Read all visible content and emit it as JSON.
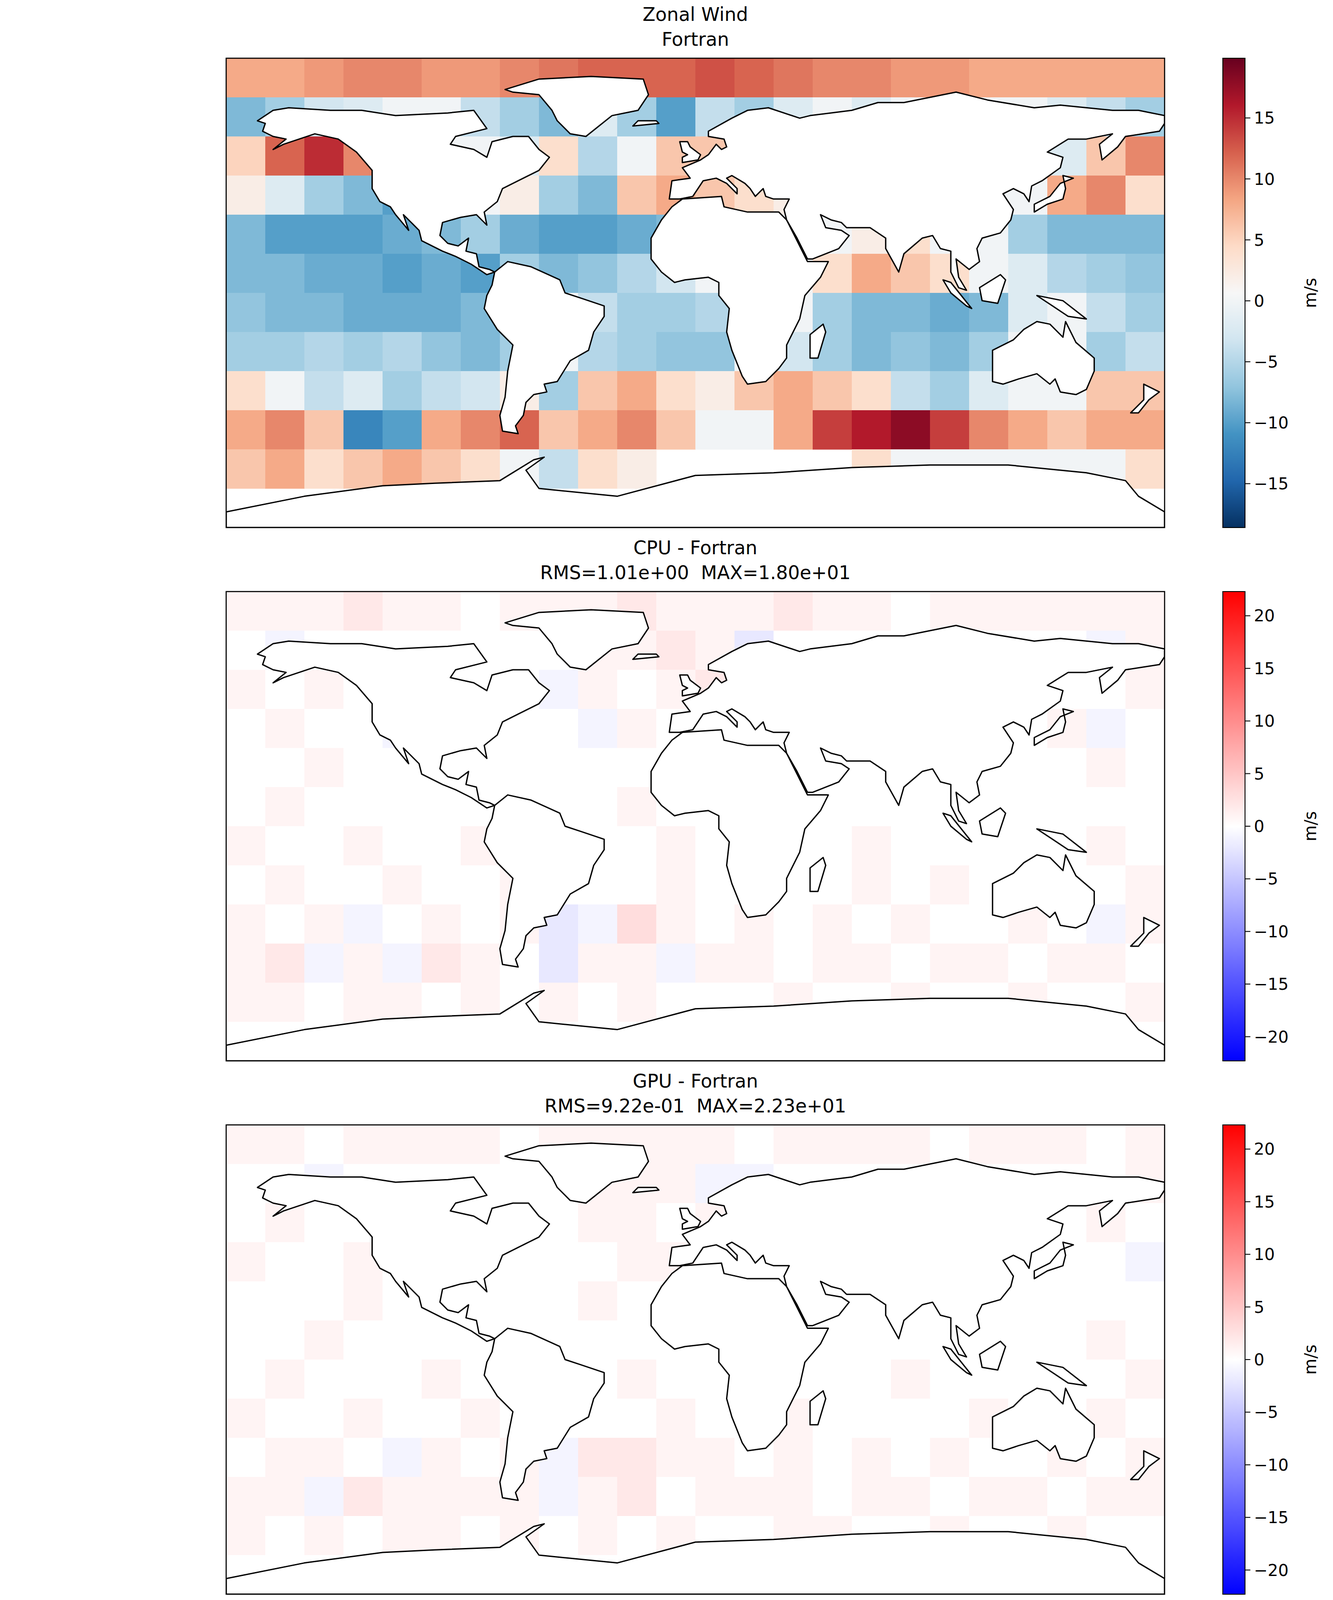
{
  "chart_data": [
    {
      "type": "heatmap",
      "title": "Zonal Wind",
      "subtitle": "Fortran",
      "tick_labels": false,
      "xlim": [
        -180,
        180
      ],
      "ylim": [
        -90,
        90
      ],
      "x": [
        -172.5,
        -157.5,
        -142.5,
        -127.5,
        -112.5,
        -97.5,
        -82.5,
        -67.5,
        -52.5,
        -37.5,
        -22.5,
        -7.5,
        7.5,
        22.5,
        37.5,
        52.5,
        67.5,
        82.5,
        97.5,
        112.5,
        127.5,
        142.5,
        157.5,
        172.5
      ],
      "y": [
        82.5,
        67.5,
        52.5,
        37.5,
        22.5,
        7.5,
        -7.5,
        -22.5,
        -37.5,
        -52.5,
        -67.5,
        -82.5
      ],
      "cells": [
        [
          8,
          8,
          9,
          10,
          10,
          9,
          9,
          10,
          11,
          12,
          12,
          12,
          13,
          12,
          11,
          10,
          10,
          9,
          9,
          8,
          8,
          8,
          8,
          8
        ],
        [
          -8,
          -6,
          -3,
          -2,
          0,
          0,
          -4,
          -6,
          -8,
          -2,
          -6,
          -10,
          -4,
          -6,
          -2,
          0,
          -2,
          0,
          0,
          0,
          0,
          -2,
          -4,
          -6
        ],
        [
          5,
          12,
          15,
          10,
          0,
          0,
          0,
          -2,
          4,
          -5,
          0,
          6,
          6,
          2,
          0,
          0,
          0,
          0,
          0,
          0,
          0,
          -2,
          6,
          10
        ],
        [
          2,
          -2,
          -6,
          -8,
          -10,
          0,
          0,
          2,
          -6,
          -8,
          6,
          8,
          6,
          4,
          2,
          0,
          0,
          0,
          0,
          0,
          0,
          8,
          10,
          4
        ],
        [
          -8,
          -10,
          -10,
          -10,
          -9,
          -8,
          -6,
          -9,
          -10,
          -10,
          -9,
          -8,
          0,
          0,
          0,
          0,
          2,
          4,
          0,
          0,
          -6,
          -8,
          -8,
          -8
        ],
        [
          -8,
          -8,
          -9,
          -9,
          -10,
          -9,
          -10,
          -6,
          -8,
          -7,
          -5,
          -3,
          0,
          0,
          0,
          4,
          8,
          6,
          4,
          0,
          -2,
          -5,
          -6,
          -7
        ],
        [
          -7,
          -8,
          -8,
          -9,
          -9,
          -9,
          -8,
          -5,
          0,
          -4,
          -6,
          -6,
          -5,
          0,
          0,
          -6,
          -8,
          -8,
          -9,
          -8,
          -2,
          0,
          -4,
          -6
        ],
        [
          -6,
          -6,
          -5,
          -6,
          -5,
          -7,
          -8,
          -6,
          0,
          -5,
          -6,
          -7,
          -7,
          0,
          -3,
          -6,
          -8,
          -7,
          -8,
          -6,
          0,
          0,
          -6,
          -4
        ],
        [
          4,
          0,
          -4,
          -2,
          -6,
          -4,
          -3,
          2,
          -6,
          6,
          8,
          4,
          2,
          6,
          8,
          6,
          4,
          -4,
          -6,
          -2,
          0,
          0,
          6,
          6
        ],
        [
          8,
          10,
          6,
          -12,
          -10,
          8,
          10,
          12,
          6,
          8,
          10,
          6,
          0,
          0,
          8,
          14,
          16,
          18,
          14,
          10,
          8,
          6,
          8,
          8
        ],
        [
          6,
          8,
          4,
          6,
          8,
          6,
          4,
          0,
          -4,
          4,
          2,
          null,
          null,
          null,
          null,
          null,
          4,
          0,
          0,
          0,
          0,
          0,
          0,
          4
        ],
        [
          null,
          null,
          null,
          null,
          null,
          null,
          null,
          null,
          null,
          null,
          null,
          null,
          null,
          null,
          null,
          null,
          null,
          null,
          null,
          null,
          null,
          null,
          null,
          null
        ]
      ],
      "colorbar": {
        "label": "m/s",
        "range": [
          -18.6,
          19.9
        ],
        "ticks": [
          {
            "value": -15,
            "label": "−15"
          },
          {
            "value": -10,
            "label": "−10"
          },
          {
            "value": -5,
            "label": "−5"
          },
          0,
          5,
          10,
          15
        ]
      }
    },
    {
      "type": "heatmap",
      "title": "CPU - Fortran",
      "subtitle": "RMS=1.01e+00  MAX=1.80e+01",
      "tick_labels": false,
      "xlim": [
        -180,
        180
      ],
      "ylim": [
        -90,
        90
      ],
      "x": [
        -172.5,
        -157.5,
        -142.5,
        -127.5,
        -112.5,
        -97.5,
        -82.5,
        -67.5,
        -52.5,
        -37.5,
        -22.5,
        -7.5,
        7.5,
        22.5,
        37.5,
        52.5,
        67.5,
        82.5,
        97.5,
        112.5,
        127.5,
        142.5,
        157.5,
        172.5
      ],
      "y": [
        82.5,
        67.5,
        52.5,
        37.5,
        22.5,
        7.5,
        -7.5,
        -22.5,
        -37.5,
        -52.5,
        -67.5,
        -82.5
      ],
      "cells": [
        [
          1,
          1,
          1,
          2,
          1,
          1,
          0,
          1,
          1,
          1,
          2,
          1,
          1,
          1,
          2,
          1,
          1,
          0,
          1,
          1,
          1,
          1,
          1,
          1
        ],
        [
          0,
          -1,
          0,
          0,
          0,
          0,
          0,
          0,
          0,
          1,
          1,
          2,
          1,
          -2,
          0,
          0,
          0,
          0,
          0,
          0,
          0,
          0,
          -1,
          1
        ],
        [
          1,
          0,
          1,
          0,
          0,
          0,
          0,
          0,
          -1,
          1,
          0,
          1,
          2,
          0,
          0,
          0,
          0,
          0,
          0,
          0,
          0,
          0,
          0,
          1
        ],
        [
          0,
          1,
          0,
          0,
          -1,
          0,
          0,
          0,
          0,
          -1,
          1,
          0,
          0,
          0,
          0,
          0,
          0,
          0,
          0,
          0,
          0,
          1,
          -1,
          0
        ],
        [
          0,
          0,
          1,
          0,
          0,
          0,
          0,
          0,
          0,
          0,
          0,
          0,
          0,
          0,
          0,
          0,
          0,
          0,
          0,
          0,
          0,
          0,
          1,
          0
        ],
        [
          0,
          1,
          0,
          0,
          0,
          0,
          0,
          0,
          0,
          0,
          1,
          0,
          0,
          0,
          0,
          0,
          0,
          0,
          0,
          0,
          0,
          0,
          0,
          0
        ],
        [
          1,
          0,
          0,
          1,
          0,
          0,
          1,
          0,
          0,
          0,
          0,
          1,
          0,
          0,
          0,
          0,
          1,
          0,
          0,
          0,
          0,
          0,
          1,
          0
        ],
        [
          0,
          1,
          0,
          0,
          1,
          0,
          0,
          1,
          0,
          0,
          0,
          1,
          0,
          0,
          0,
          0,
          1,
          0,
          1,
          0,
          0,
          0,
          0,
          1
        ],
        [
          1,
          0,
          1,
          -1,
          0,
          1,
          0,
          1,
          -2,
          -1,
          3,
          1,
          0,
          1,
          0,
          1,
          0,
          1,
          0,
          0,
          1,
          0,
          -1,
          1
        ],
        [
          1,
          2,
          -1,
          1,
          -1,
          2,
          1,
          0,
          -2,
          1,
          1,
          -1,
          1,
          1,
          0,
          1,
          1,
          0,
          1,
          1,
          0,
          1,
          1,
          0
        ],
        [
          1,
          1,
          0,
          1,
          1,
          0,
          1,
          0,
          1,
          0,
          1,
          0,
          0,
          0,
          1,
          0,
          0,
          1,
          0,
          0,
          1,
          0,
          0,
          1
        ],
        [
          0,
          0,
          0,
          0,
          0,
          0,
          0,
          0,
          0,
          0,
          0,
          0,
          0,
          0,
          0,
          0,
          0,
          0,
          0,
          0,
          0,
          0,
          0,
          0
        ]
      ],
      "colorbar": {
        "label": "m/s",
        "range": [
          -22.3,
          22.3
        ],
        "ticks": [
          {
            "value": -20,
            "label": "−20"
          },
          {
            "value": -15,
            "label": "−15"
          },
          {
            "value": -10,
            "label": "−10"
          },
          {
            "value": -5,
            "label": "−5"
          },
          0,
          5,
          10,
          15,
          20
        ]
      }
    },
    {
      "type": "heatmap",
      "title": "GPU - Fortran",
      "subtitle": "RMS=9.22e-01  MAX=2.23e+01",
      "tick_labels": false,
      "xlim": [
        -180,
        180
      ],
      "ylim": [
        -90,
        90
      ],
      "x": [
        -172.5,
        -157.5,
        -142.5,
        -127.5,
        -112.5,
        -97.5,
        -82.5,
        -67.5,
        -52.5,
        -37.5,
        -22.5,
        -7.5,
        7.5,
        22.5,
        37.5,
        52.5,
        67.5,
        82.5,
        97.5,
        112.5,
        127.5,
        142.5,
        157.5,
        172.5
      ],
      "y": [
        82.5,
        67.5,
        52.5,
        37.5,
        22.5,
        7.5,
        -7.5,
        -22.5,
        -37.5,
        -52.5,
        -67.5,
        -82.5
      ],
      "cells": [
        [
          1,
          1,
          0,
          1,
          1,
          1,
          1,
          0,
          1,
          1,
          1,
          1,
          1,
          0,
          1,
          1,
          1,
          1,
          0,
          1,
          1,
          1,
          0,
          1
        ],
        [
          0,
          0,
          -1,
          0,
          0,
          0,
          0,
          0,
          0,
          1,
          1,
          1,
          -1,
          -1,
          0,
          0,
          0,
          0,
          0,
          0,
          0,
          0,
          0,
          1
        ],
        [
          0,
          1,
          0,
          0,
          0,
          0,
          0,
          0,
          0,
          1,
          1,
          0,
          1,
          -1,
          0,
          0,
          0,
          0,
          0,
          0,
          0,
          0,
          1,
          0
        ],
        [
          1,
          0,
          0,
          1,
          0,
          0,
          0,
          0,
          0,
          0,
          1,
          1,
          0,
          0,
          0,
          0,
          0,
          0,
          0,
          0,
          0,
          0,
          0,
          -1
        ],
        [
          0,
          0,
          0,
          1,
          0,
          0,
          0,
          0,
          0,
          1,
          0,
          0,
          0,
          0,
          0,
          0,
          0,
          0,
          0,
          0,
          0,
          0,
          0,
          0
        ],
        [
          0,
          0,
          1,
          0,
          0,
          0,
          0,
          0,
          0,
          0,
          0,
          0,
          0,
          0,
          0,
          0,
          0,
          0,
          0,
          0,
          0,
          0,
          1,
          0
        ],
        [
          0,
          1,
          0,
          0,
          0,
          1,
          0,
          0,
          0,
          0,
          1,
          0,
          0,
          0,
          0,
          0,
          0,
          1,
          0,
          0,
          0,
          0,
          0,
          1
        ],
        [
          1,
          0,
          0,
          1,
          0,
          0,
          1,
          0,
          0,
          0,
          0,
          1,
          0,
          0,
          1,
          0,
          0,
          0,
          0,
          1,
          0,
          0,
          1,
          0
        ],
        [
          0,
          1,
          1,
          0,
          -1,
          1,
          0,
          1,
          -1,
          2,
          2,
          1,
          1,
          0,
          1,
          0,
          1,
          0,
          1,
          0,
          0,
          1,
          0,
          1
        ],
        [
          1,
          1,
          -1,
          2,
          1,
          1,
          1,
          1,
          -1,
          1,
          2,
          0,
          1,
          1,
          1,
          0,
          1,
          1,
          0,
          1,
          1,
          0,
          1,
          1
        ],
        [
          1,
          0,
          1,
          0,
          1,
          1,
          0,
          1,
          0,
          1,
          0,
          1,
          0,
          0,
          1,
          1,
          0,
          0,
          1,
          0,
          0,
          1,
          0,
          0
        ],
        [
          0,
          0,
          0,
          0,
          0,
          0,
          0,
          0,
          0,
          0,
          0,
          0,
          0,
          0,
          0,
          0,
          0,
          0,
          0,
          0,
          0,
          0,
          0,
          0
        ]
      ],
      "colorbar": {
        "label": "m/s",
        "range": [
          -22.3,
          22.3
        ],
        "ticks": [
          {
            "value": -20,
            "label": "−20"
          },
          {
            "value": -15,
            "label": "−15"
          },
          {
            "value": -10,
            "label": "−10"
          },
          {
            "value": -5,
            "label": "−5"
          },
          0,
          5,
          10,
          15,
          20
        ]
      }
    }
  ]
}
